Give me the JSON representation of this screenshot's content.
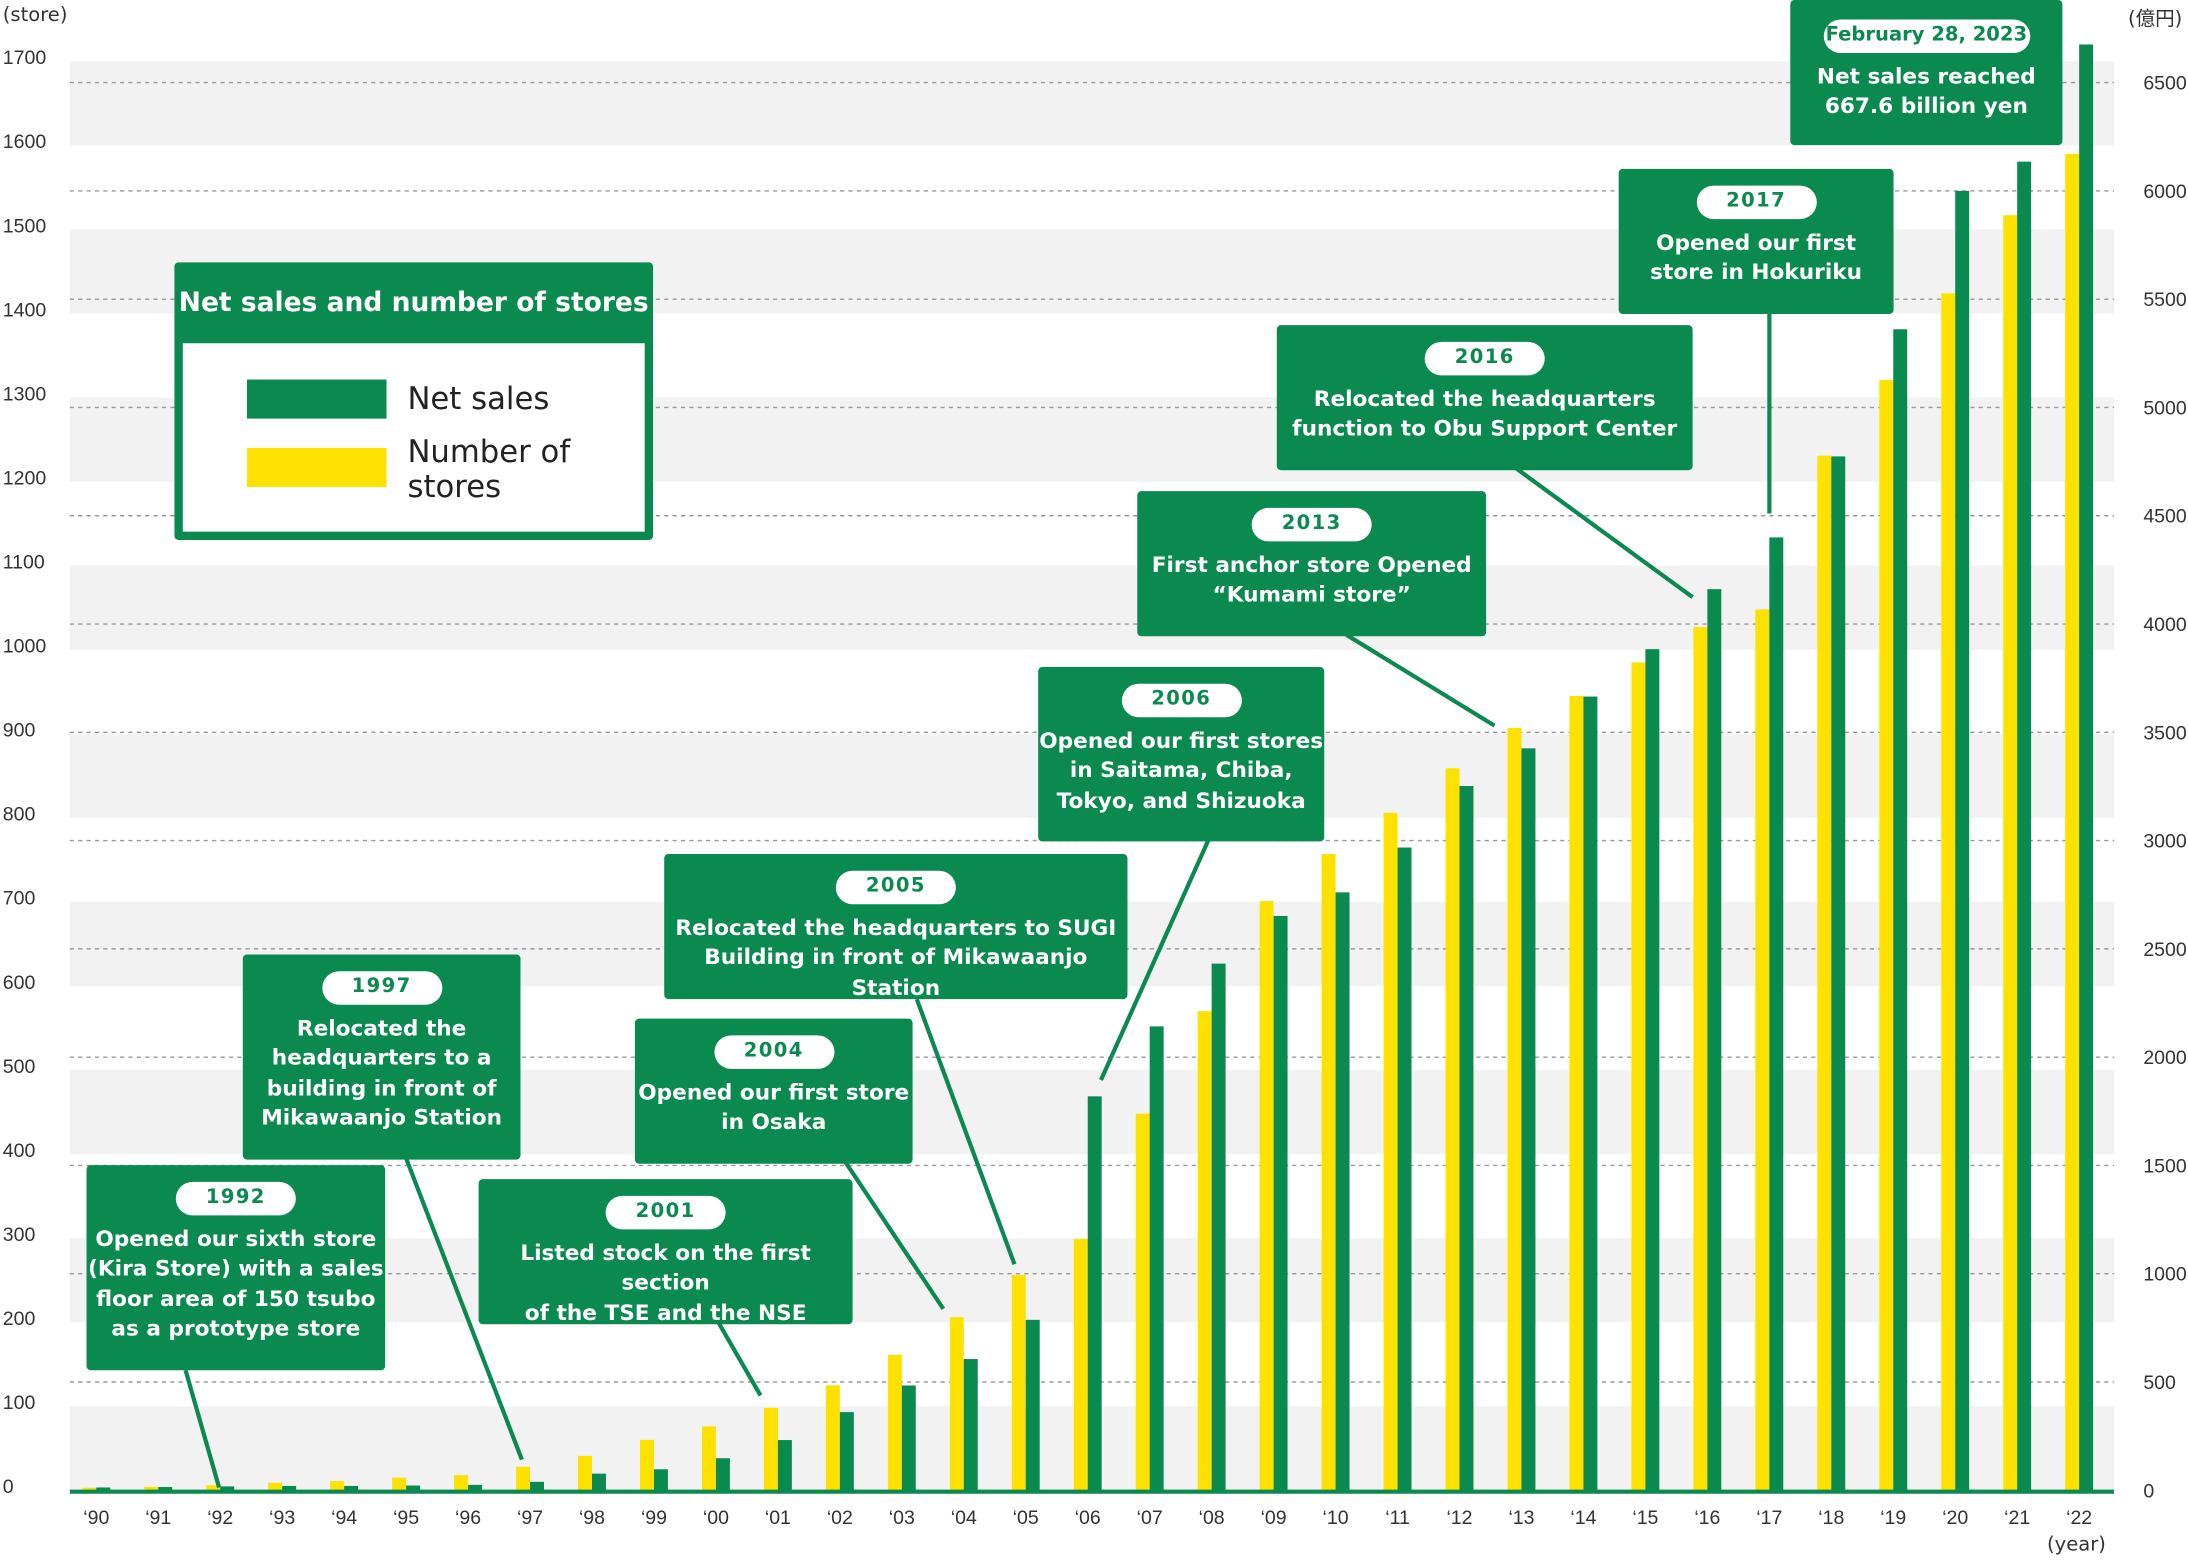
{
  "colors": {
    "net_sales": "#0b8a4f",
    "stores": "#ffe100",
    "band": "#f2f2f2",
    "grid": "#999999"
  },
  "legend": {
    "title": "Net sales and number of stores",
    "items": [
      {
        "label": "Net sales",
        "color": "#0b8a4f"
      },
      {
        "label": "Number of\nstores",
        "color": "#ffe100"
      }
    ]
  },
  "units": {
    "left": "(store)",
    "right": "(億円)",
    "x": "(year)"
  },
  "chart_data": {
    "type": "bar",
    "title": "Net sales and number of stores",
    "xlabel": "(year)",
    "ylabel_left": "(store)",
    "ylabel_right": "(億円)",
    "categories": [
      "'90",
      "'91",
      "'92",
      "'93",
      "'94",
      "'95",
      "'96",
      "'97",
      "'98",
      "'99",
      "'00",
      "'01",
      "'02",
      "'03",
      "'04",
      "'05",
      "'06",
      "'07",
      "'08",
      "'09",
      "'10",
      "'11",
      "'12",
      "'13",
      "'14",
      "'15",
      "'16",
      "'17",
      "'18",
      "'19",
      "'20",
      "'21",
      "'22"
    ],
    "ylim_left": [
      0,
      1700
    ],
    "yticks_left": [
      0,
      100,
      200,
      300,
      400,
      500,
      600,
      700,
      800,
      900,
      1000,
      1100,
      1200,
      1300,
      1400,
      1500,
      1600,
      1700
    ],
    "ylim_right": [
      0,
      6500
    ],
    "yticks_right": [
      0,
      500,
      1000,
      1500,
      2000,
      2500,
      3000,
      3500,
      4000,
      4500,
      5000,
      5500,
      6000,
      6500
    ],
    "grid": true,
    "legend_position": "top-left",
    "series": [
      {
        "name": "Number of stores",
        "axis": "left",
        "color": "#ffe100",
        "values": [
          3,
          4,
          6,
          9,
          11,
          15,
          18,
          28,
          41,
          60,
          76,
          98,
          125,
          161,
          206,
          256,
          299,
          448,
          570,
          701,
          757,
          806,
          859,
          907,
          945,
          985,
          1027,
          1048,
          1231,
          1321,
          1424,
          1517,
          1590
        ]
      },
      {
        "name": "Net sales",
        "axis": "right",
        "color": "#0b8a4f",
        "values": [
          13,
          15,
          18,
          20,
          20,
          22,
          25,
          39,
          77,
          97,
          148,
          232,
          361,
          484,
          606,
          787,
          1819,
          2142,
          2432,
          2652,
          2761,
          2968,
          3252,
          3426,
          3665,
          3884,
          4161,
          4400,
          4774,
          5361,
          6000,
          6135,
          6676
        ]
      }
    ]
  },
  "callouts": [
    {
      "year": "1992",
      "text": "Opened our sixth store\n(Kira Store) with a sales\nfloor area of 150 tsubo\nas a prototype store"
    },
    {
      "year": "1997",
      "text": "Relocated the\nheadquarters to a\nbuilding in front of\nMikawaanjo Station"
    },
    {
      "year": "2001",
      "text": "Listed stock on the first section\nof the TSE and the NSE"
    },
    {
      "year": "2004",
      "text": "Opened our first store\nin Osaka"
    },
    {
      "year": "2005",
      "text": "Relocated the headquarters to SUGI\nBuilding in front of Mikawaanjo Station"
    },
    {
      "year": "2006",
      "text": "Opened our first stores\nin Saitama, Chiba,\nTokyo, and Shizuoka"
    },
    {
      "year": "2013",
      "text": "First anchor store Opened\n“Kumami store”"
    },
    {
      "year": "2016",
      "text": "Relocated the headquarters\nfunction to Obu Support Center"
    },
    {
      "year": "2017",
      "text": "Opened our first\nstore in Hokuriku"
    },
    {
      "year": "February 28, 2023",
      "text": "Net sales reached\n667.6 billion yen"
    }
  ]
}
